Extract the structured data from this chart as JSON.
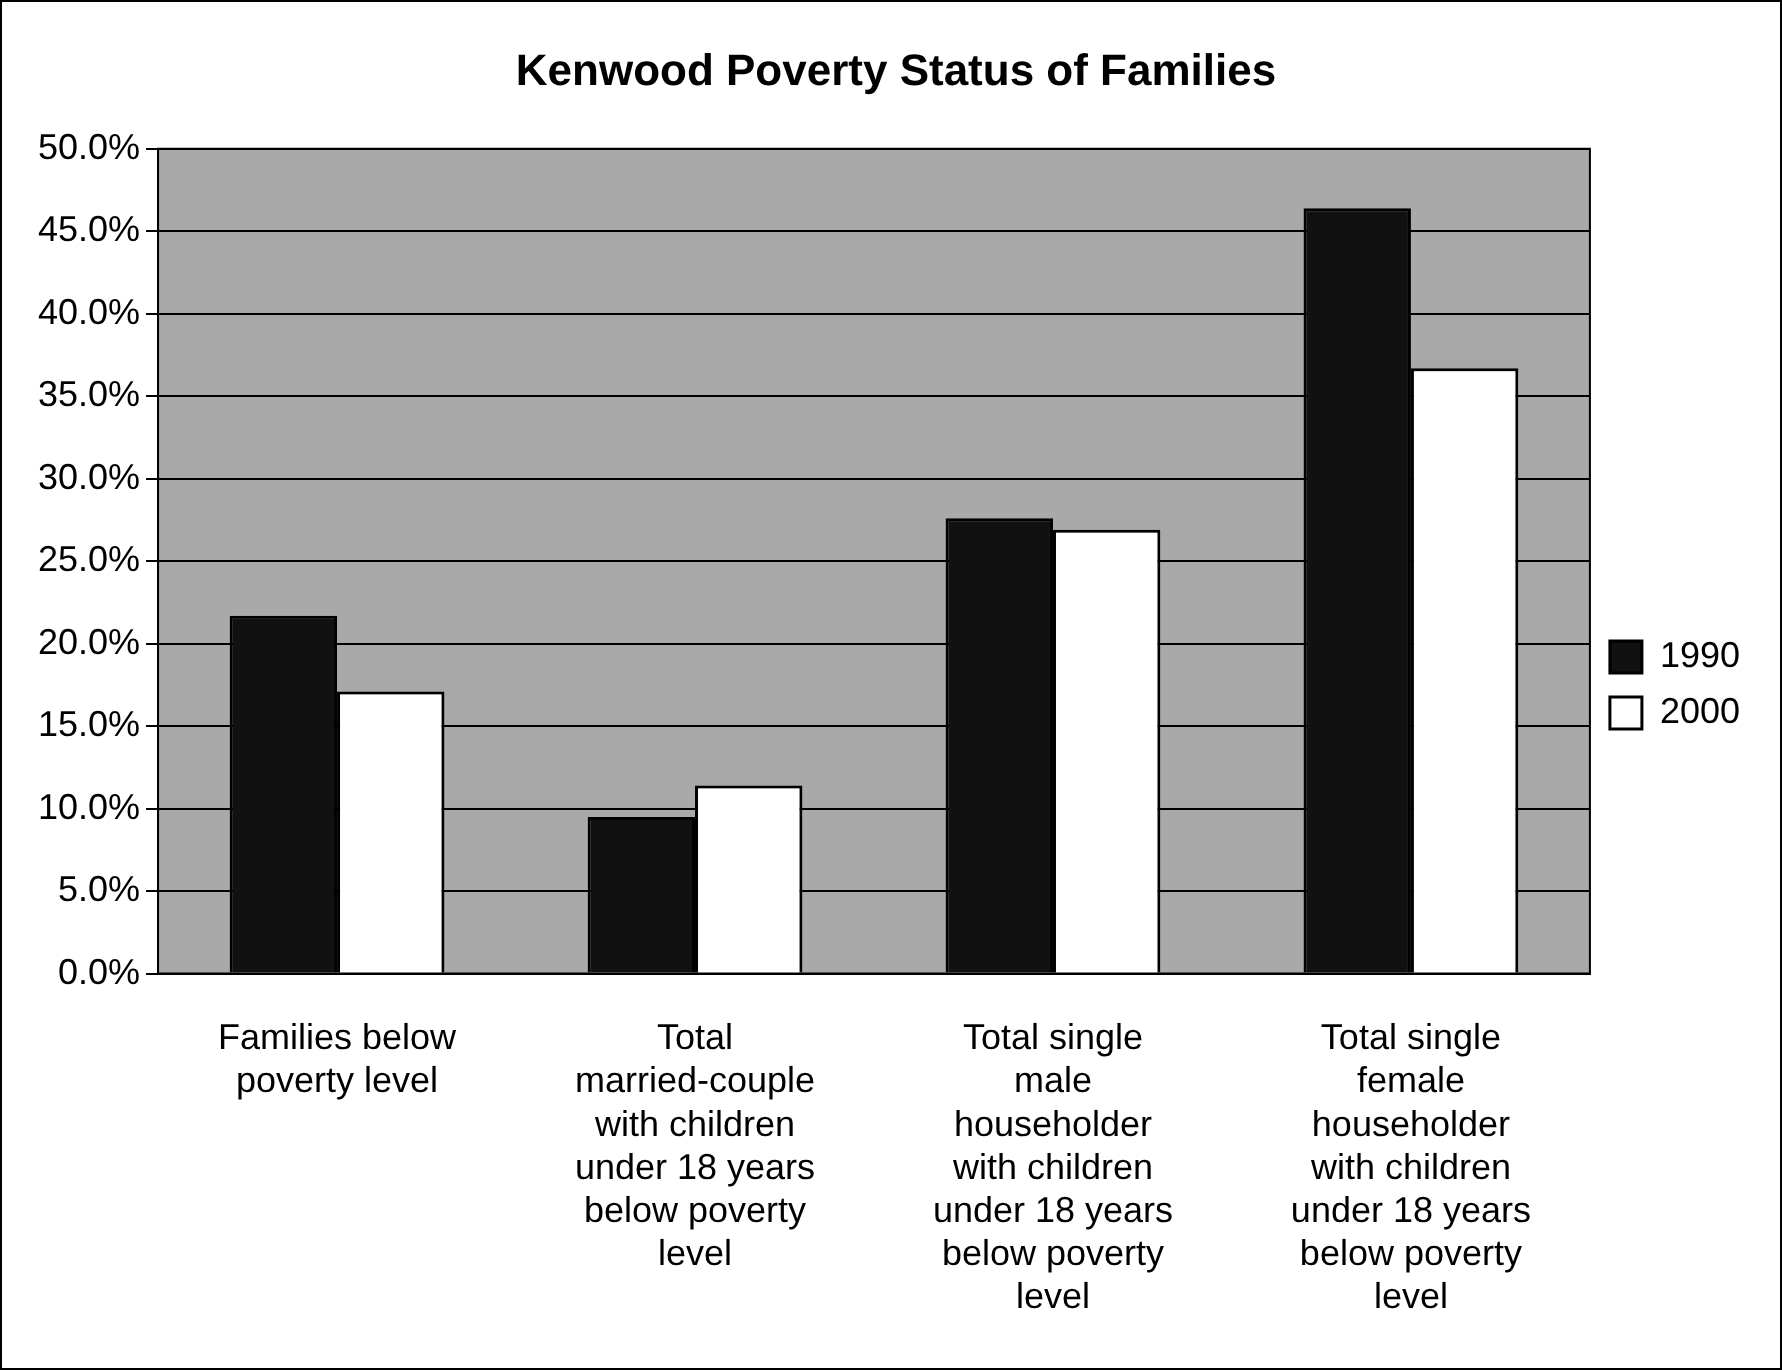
{
  "chart_data": {
    "type": "bar",
    "title": "Kenwood Poverty Status of Families",
    "categories": [
      "Families below poverty level",
      "Total married-couple with children under 18 years below poverty level",
      "Total single male householder with children under 18 years below poverty level",
      "Total single female householder with children under 18 years below poverty level"
    ],
    "series": [
      {
        "name": "1990",
        "color": "#111111",
        "values": [
          21.7,
          9.5,
          27.6,
          46.4
        ]
      },
      {
        "name": "2000",
        "color": "#ffffff",
        "values": [
          17.1,
          11.4,
          26.9,
          36.7
        ]
      }
    ],
    "ylim": [
      0,
      50
    ],
    "yticks": [
      {
        "value": 0,
        "label": "0.0%"
      },
      {
        "value": 5,
        "label": "5.0%"
      },
      {
        "value": 10,
        "label": "10.0%"
      },
      {
        "value": 15,
        "label": "15.0%"
      },
      {
        "value": 20,
        "label": "20.0%"
      },
      {
        "value": 25,
        "label": "25.0%"
      },
      {
        "value": 30,
        "label": "30.0%"
      },
      {
        "value": 35,
        "label": "35.0%"
      },
      {
        "value": 40,
        "label": "40.0%"
      },
      {
        "value": 45,
        "label": "45.0%"
      },
      {
        "value": 50,
        "label": "50.0%"
      }
    ],
    "grid": "y",
    "legend": "right"
  }
}
